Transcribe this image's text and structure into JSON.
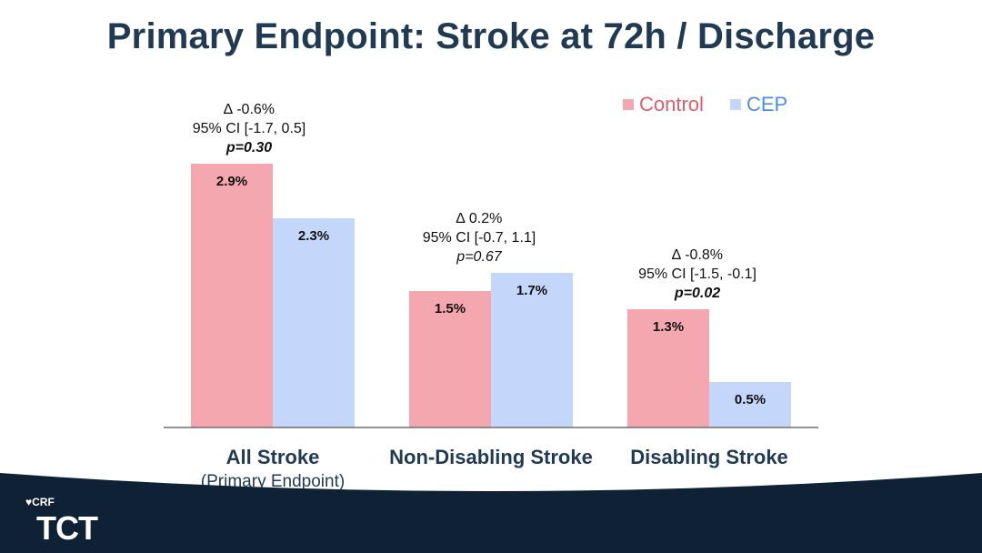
{
  "title": "Primary Endpoint: Stroke at 72h / Discharge",
  "colors": {
    "control": "#f4a7ae",
    "cep": "#c5d6fb",
    "title": "#1f3a52",
    "footer": "#0f2235"
  },
  "legend": [
    {
      "name": "Control",
      "color": "#f4a7ae",
      "text_color": "#e15c6b"
    },
    {
      "name": "CEP",
      "color": "#c5d6fb",
      "text_color": "#4b8ee8"
    }
  ],
  "chart_data": {
    "type": "bar",
    "categories": [
      "All Stroke",
      "Non-Disabling Stroke",
      "Disabling Stroke"
    ],
    "category_sublabels": [
      "(Primary Endpoint)",
      "",
      ""
    ],
    "series": [
      {
        "name": "Control",
        "values": [
          2.9,
          1.5,
          1.3
        ],
        "labels": [
          "2.9%",
          "1.5%",
          "1.3%"
        ]
      },
      {
        "name": "CEP",
        "values": [
          2.3,
          1.7,
          0.5
        ],
        "labels": [
          "2.3%",
          "1.7%",
          "0.5%"
        ]
      }
    ],
    "annotations": [
      {
        "delta": "∆ -0.6%",
        "ci": "95% CI [-1.7, 0.5]",
        "p": "p=0.30",
        "p_bold": true
      },
      {
        "delta": "∆ 0.2%",
        "ci": "95% CI [-0.7, 1.1]",
        "p": "p=0.67",
        "p_bold": false
      },
      {
        "delta": "∆ -0.8%",
        "ci": "95% CI [-1.5, -0.1]",
        "p": "p=0.02",
        "p_bold": true
      }
    ],
    "ylim": [
      0,
      3.2
    ],
    "legend_position": "top-right",
    "grid": false
  },
  "footer": {
    "crf": "CRF",
    "tct": "TCT"
  }
}
